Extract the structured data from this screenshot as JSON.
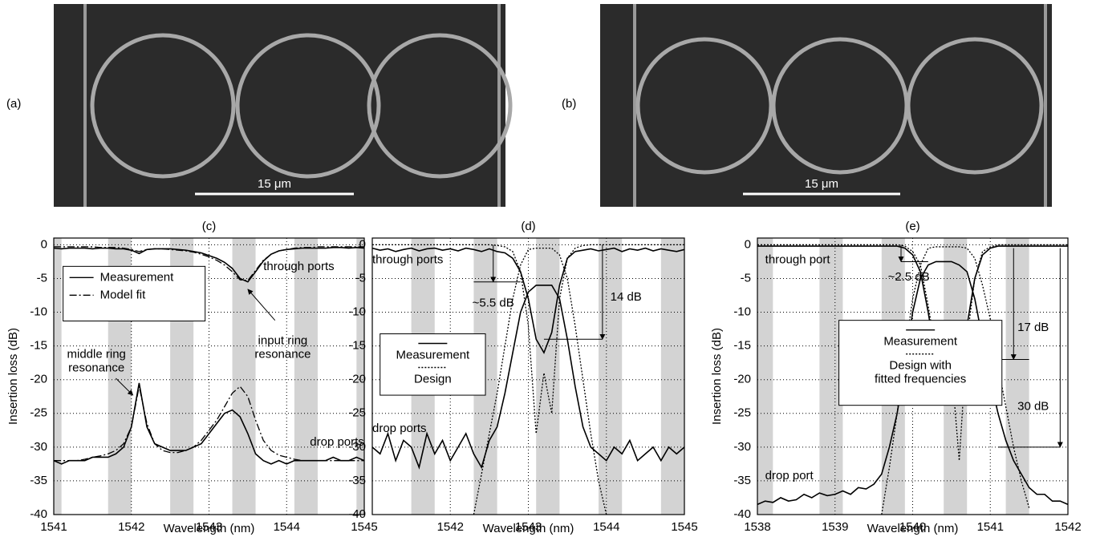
{
  "images": [
    {
      "label": "(a)",
      "scale_bar": "15 μm"
    },
    {
      "label": "(b)",
      "scale_bar": "15 μm"
    }
  ],
  "chart_data": [
    {
      "type": "line",
      "title": "(c)",
      "x_label": "Wavelength (nm)",
      "y_label": "Insertion loss (dB)",
      "xlim": [
        1541,
        1545
      ],
      "ylim": [
        -40,
        1
      ],
      "xticks": [
        1541,
        1542,
        1543,
        1544,
        1545
      ],
      "yticks": [
        0,
        -5,
        -10,
        -15,
        -20,
        -25,
        -30,
        -35,
        -40
      ],
      "grid": true,
      "bands": [
        [
          1541.0,
          1541.1
        ],
        [
          1541.7,
          1542.0
        ],
        [
          1542.5,
          1542.8
        ],
        [
          1543.3,
          1543.6
        ],
        [
          1544.1,
          1544.4
        ],
        [
          1544.9,
          1545.0
        ]
      ],
      "x": [
        1541.0,
        1541.1,
        1541.2,
        1541.3,
        1541.4,
        1541.5,
        1541.6,
        1541.7,
        1541.8,
        1541.9,
        1542.0,
        1542.1,
        1542.2,
        1542.3,
        1542.4,
        1542.5,
        1542.6,
        1542.7,
        1542.8,
        1542.9,
        1543.0,
        1543.1,
        1543.2,
        1543.3,
        1543.4,
        1543.5,
        1543.6,
        1543.7,
        1543.8,
        1543.9,
        1544.0,
        1544.1,
        1544.2,
        1544.3,
        1544.4,
        1544.5,
        1544.6,
        1544.7,
        1544.8,
        1544.9,
        1545.0
      ],
      "series": [
        {
          "name": "Measurement",
          "dash": "solid",
          "color": "#000000",
          "values": [
            -0.5,
            -0.6,
            -0.5,
            -0.5,
            -0.5,
            -0.6,
            -0.5,
            -0.5,
            -0.6,
            -0.6,
            -0.8,
            -1.3,
            -0.7,
            -0.6,
            -0.6,
            -0.6,
            -0.7,
            -0.8,
            -1.0,
            -1.2,
            -1.6,
            -2.0,
            -2.6,
            -3.5,
            -5.0,
            -5.5,
            -4.0,
            -2.4,
            -1.4,
            -0.9,
            -0.7,
            -0.6,
            -0.5,
            -0.5,
            -0.5,
            -0.5,
            -0.4,
            -0.4,
            -0.5,
            -0.4,
            -0.5
          ]
        },
        {
          "name": "Model fit",
          "dash": "dashdot",
          "color": "#000000",
          "values": [
            -0.3,
            -0.3,
            -0.3,
            -0.3,
            -0.3,
            -0.3,
            -0.4,
            -0.4,
            -0.4,
            -0.5,
            -0.7,
            -1.0,
            -0.7,
            -0.6,
            -0.6,
            -0.7,
            -0.8,
            -0.9,
            -1.1,
            -1.4,
            -1.8,
            -2.3,
            -3.0,
            -4.0,
            -5.2,
            -5.3,
            -3.8,
            -2.3,
            -1.4,
            -0.9,
            -0.7,
            -0.5,
            -0.4,
            -0.4,
            -0.3,
            -0.3,
            -0.3,
            -0.3,
            -0.3,
            -0.3,
            -0.3
          ]
        },
        {
          "dash": "solid",
          "color": "#000000",
          "values": [
            -32,
            -32.5,
            -32,
            -32,
            -32,
            -31.5,
            -31.5,
            -31.5,
            -31,
            -30,
            -27,
            -20.5,
            -27,
            -29.5,
            -30,
            -30.5,
            -30.5,
            -30.5,
            -30,
            -29.5,
            -28,
            -26.5,
            -25,
            -24.5,
            -25.5,
            -28,
            -31,
            -32,
            -32.5,
            -32,
            -32.5,
            -32,
            -32,
            -32,
            -32,
            -32,
            -31.5,
            -32,
            -32,
            -31.5,
            -32
          ]
        },
        {
          "dash": "dashdot",
          "color": "#000000",
          "values": [
            -32,
            -32,
            -32,
            -32,
            -31.8,
            -31.5,
            -31.3,
            -31,
            -30.5,
            -29.5,
            -27,
            -21,
            -26.5,
            -29.5,
            -30.5,
            -30.8,
            -30.8,
            -30.5,
            -30,
            -29,
            -27.5,
            -26,
            -24,
            -22,
            -21,
            -22.5,
            -26,
            -29,
            -30.5,
            -31.2,
            -31.5,
            -31.8,
            -32,
            -32,
            -32,
            -32,
            -32,
            -32,
            -32,
            -32,
            -32
          ]
        }
      ],
      "annotations": [
        "through ports",
        "drop ports",
        "middle ring resonance",
        "input ring resonance"
      ]
    },
    {
      "type": "line",
      "title": "(d)",
      "x_label": "Wavelength (nm)",
      "xlim": [
        1541,
        1545
      ],
      "ylim": [
        -40,
        1
      ],
      "xticks": [
        1542,
        1543,
        1544,
        1545
      ],
      "yticks": [
        0,
        -5,
        -10,
        -15,
        -20,
        -25,
        -30,
        -35,
        -40
      ],
      "grid": true,
      "bands": [
        [
          1541.5,
          1541.8
        ],
        [
          1542.3,
          1542.6
        ],
        [
          1543.1,
          1543.4
        ],
        [
          1543.9,
          1544.2
        ],
        [
          1544.7,
          1545.0
        ]
      ],
      "x": [
        1541.0,
        1541.1,
        1541.2,
        1541.3,
        1541.4,
        1541.5,
        1541.6,
        1541.7,
        1541.8,
        1541.9,
        1542.0,
        1542.1,
        1542.2,
        1542.3,
        1542.4,
        1542.5,
        1542.6,
        1542.7,
        1542.8,
        1542.9,
        1543.0,
        1543.1,
        1543.2,
        1543.3,
        1543.4,
        1543.5,
        1543.6,
        1543.7,
        1543.8,
        1543.9,
        1544.0,
        1544.1,
        1544.2,
        1544.3,
        1544.4,
        1544.5,
        1544.6,
        1544.7,
        1544.8,
        1544.9,
        1545.0
      ],
      "series": [
        {
          "name": "Measurement",
          "dash": "solid",
          "color": "#000000",
          "values": [
            -0.5,
            -0.8,
            -0.6,
            -1.0,
            -0.7,
            -0.5,
            -0.9,
            -0.6,
            -0.5,
            -0.8,
            -0.6,
            -0.9,
            -0.5,
            -0.7,
            -1.0,
            -0.6,
            -1.0,
            -1.2,
            -2.0,
            -4.0,
            -8.0,
            -14,
            -16,
            -13,
            -6,
            -2,
            -1.0,
            -0.8,
            -0.6,
            -0.9,
            -0.7,
            -0.5,
            -1.0,
            -0.6,
            -0.8,
            -0.5,
            -0.9,
            -0.6,
            -0.8,
            -1.0,
            -0.7
          ]
        },
        {
          "name": "Design",
          "dash": "dot",
          "color": "#000000",
          "values": [
            0,
            0,
            0,
            0,
            0,
            0,
            0,
            0,
            0,
            0,
            0,
            0,
            0,
            0,
            0,
            0,
            -0.1,
            -0.3,
            -1.0,
            -4.0,
            -12,
            -28,
            -19,
            -25,
            -8,
            -2,
            -0.5,
            -0.1,
            0,
            0,
            0,
            0,
            0,
            0,
            0,
            0,
            0,
            0,
            0,
            0,
            0
          ]
        },
        {
          "dash": "solid",
          "color": "#000000",
          "values": [
            -30,
            -31,
            -28,
            -32,
            -29,
            -30,
            -33,
            -28,
            -31,
            -29,
            -32,
            -30,
            -28,
            -31,
            -33,
            -29,
            -27,
            -22,
            -16,
            -10,
            -7,
            -6,
            -6,
            -6,
            -8,
            -14,
            -21,
            -27,
            -30,
            -31,
            -32,
            -30,
            -31,
            -29,
            -32,
            -31,
            -30,
            -32,
            -30,
            -31,
            -30
          ]
        },
        {
          "dash": "dot",
          "color": "#000000",
          "values": [
            null,
            null,
            null,
            null,
            null,
            null,
            null,
            null,
            null,
            null,
            null,
            null,
            null,
            -40,
            -34,
            -28,
            -22,
            -15,
            -8,
            -3,
            -0.7,
            -0.5,
            -0.5,
            -0.5,
            -1.5,
            -5,
            -12,
            -20,
            -28,
            -35,
            -40,
            null,
            null,
            null,
            null,
            null,
            null,
            null,
            null,
            null,
            null
          ]
        }
      ],
      "annotations": [
        "through ports",
        "drop ports",
        "~5.5 dB",
        "14 dB"
      ]
    },
    {
      "type": "line",
      "title": "(e)",
      "x_label": "Wavelength (nm)",
      "y_label": "Insertion loss (dB)",
      "xlim": [
        1538,
        1542
      ],
      "ylim": [
        -40,
        1
      ],
      "xticks": [
        1538,
        1539,
        1540,
        1541,
        1542
      ],
      "yticks": [
        0,
        -5,
        -10,
        -15,
        -20,
        -25,
        -30,
        -35,
        -40
      ],
      "grid": true,
      "bands": [
        [
          1538.0,
          1538.2
        ],
        [
          1538.8,
          1539.1
        ],
        [
          1539.6,
          1539.9
        ],
        [
          1540.4,
          1540.7
        ],
        [
          1541.2,
          1541.5
        ]
      ],
      "x": [
        1538.0,
        1538.1,
        1538.2,
        1538.3,
        1538.4,
        1538.5,
        1538.6,
        1538.7,
        1538.8,
        1538.9,
        1539.0,
        1539.1,
        1539.2,
        1539.3,
        1539.4,
        1539.5,
        1539.6,
        1539.7,
        1539.8,
        1539.9,
        1540.0,
        1540.1,
        1540.2,
        1540.3,
        1540.4,
        1540.5,
        1540.6,
        1540.7,
        1540.8,
        1540.9,
        1541.0,
        1541.1,
        1541.2,
        1541.3,
        1541.4,
        1541.5,
        1541.6,
        1541.7,
        1541.8,
        1541.9,
        1542.0
      ],
      "series": [
        {
          "name": "Measurement",
          "dash": "solid",
          "color": "#000000",
          "values": [
            -0.2,
            -0.2,
            -0.2,
            -0.2,
            -0.2,
            -0.2,
            -0.2,
            -0.2,
            -0.2,
            -0.2,
            -0.2,
            -0.2,
            -0.2,
            -0.2,
            -0.2,
            -0.2,
            -0.2,
            -0.2,
            -0.2,
            -0.5,
            -1.5,
            -4,
            -10,
            -17,
            -20,
            -18,
            -20,
            -12,
            -5,
            -1.5,
            -0.5,
            -0.2,
            -0.2,
            -0.2,
            -0.2,
            -0.2,
            -0.2,
            -0.2,
            -0.2,
            -0.2,
            -0.2
          ]
        },
        {
          "name": "Design with fitted frequencies",
          "dash": "dot",
          "color": "#000000",
          "values": [
            0,
            0,
            0,
            0,
            0,
            0,
            0,
            0,
            0,
            0,
            0,
            0,
            0,
            0,
            0,
            0,
            0,
            0,
            0,
            -0.2,
            -1,
            -3,
            -9,
            -16,
            -22,
            -18,
            -32,
            -14,
            -5,
            -1,
            -0.3,
            0,
            0,
            0,
            0,
            0,
            0,
            0,
            0,
            0,
            0
          ]
        },
        {
          "dash": "solid",
          "color": "#000000",
          "values": [
            -38.5,
            -38,
            -38.2,
            -37.5,
            -38,
            -37.8,
            -37,
            -37.5,
            -36.8,
            -37.2,
            -37,
            -36.5,
            -37,
            -36,
            -36.2,
            -35.5,
            -34,
            -30,
            -25,
            -18,
            -10,
            -5,
            -3,
            -2.5,
            -2.5,
            -2.5,
            -3,
            -4,
            -8,
            -14,
            -20,
            -25,
            -29,
            -32,
            -34,
            -36,
            -37,
            -37,
            -38,
            -38,
            -38.5
          ]
        },
        {
          "dash": "dot",
          "color": "#000000",
          "values": [
            null,
            null,
            null,
            null,
            null,
            null,
            null,
            null,
            null,
            null,
            null,
            null,
            null,
            null,
            null,
            null,
            -40,
            -33,
            -25,
            -16,
            -8,
            -3,
            -0.5,
            -0.3,
            -0.3,
            -0.3,
            -0.3,
            -0.5,
            -2,
            -6,
            -11,
            -18,
            -24,
            -30,
            -35,
            -39,
            null,
            null,
            null,
            null,
            null
          ]
        }
      ],
      "annotations": [
        "through port",
        "drop port",
        "~2.5 dB",
        "17 dB",
        "30 dB"
      ]
    }
  ]
}
